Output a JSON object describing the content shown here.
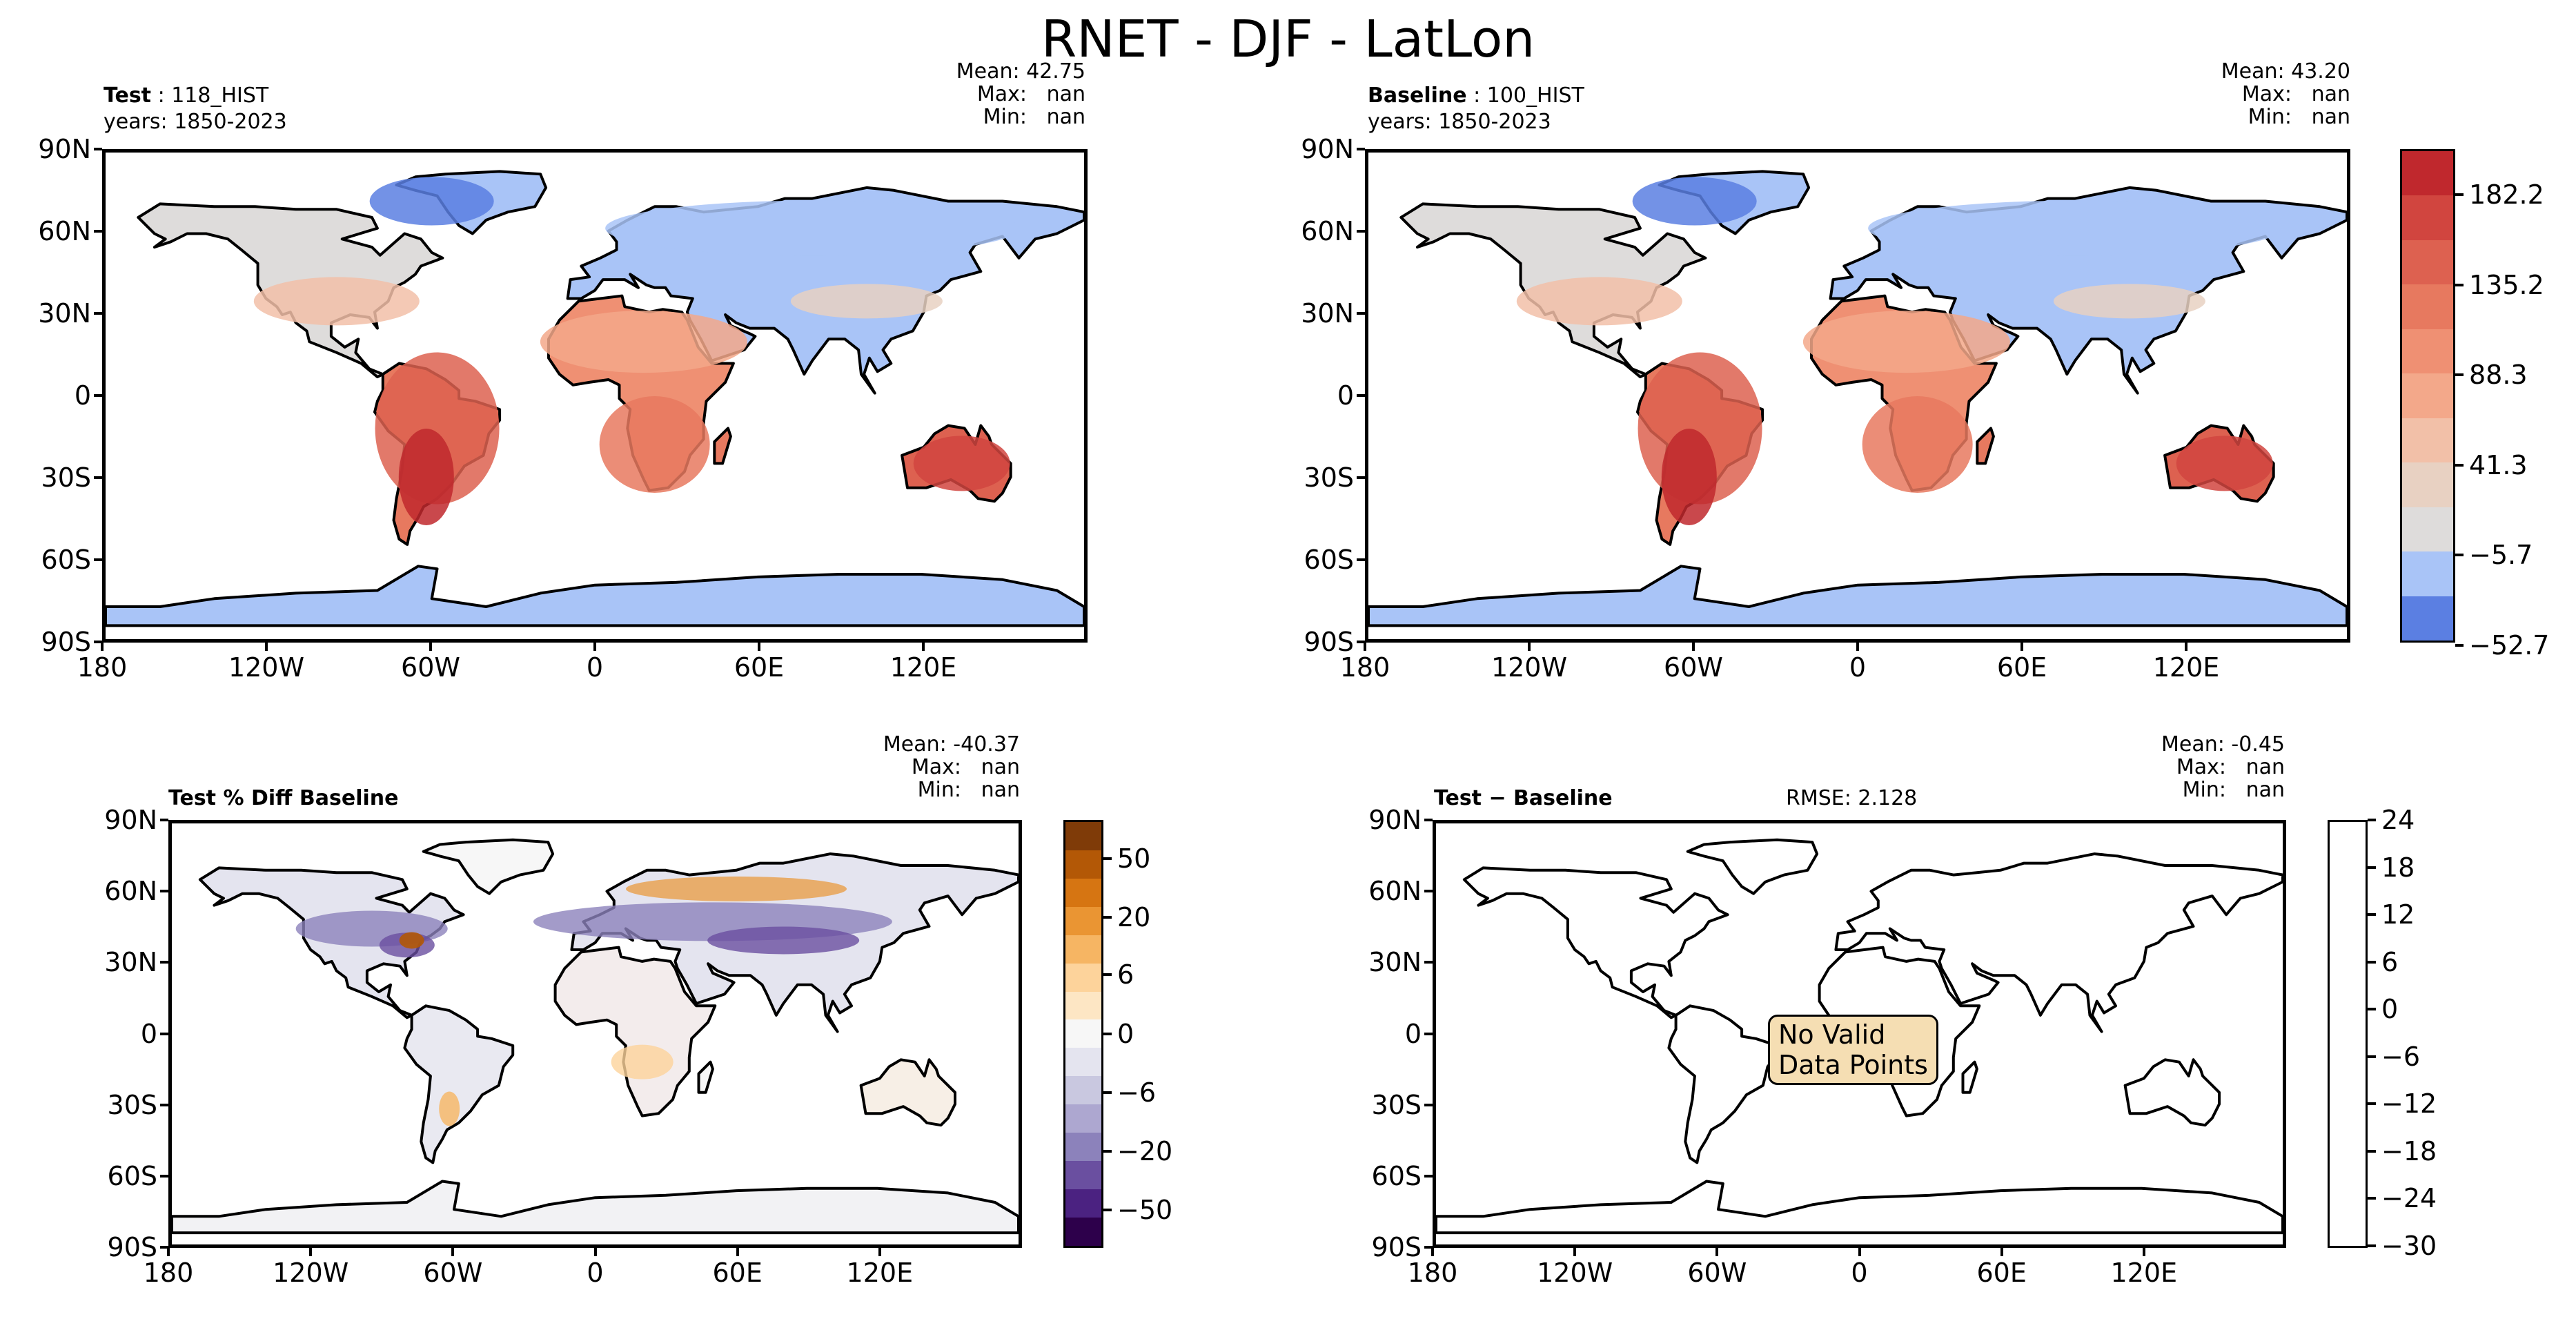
{
  "figure": {
    "title": "RNET - DJF - LatLon"
  },
  "panels": {
    "test": {
      "name_bold": "Test",
      "name_rest": " : 118_HIST",
      "years": "years: 1850-2023",
      "stats": "Mean: 42.75\nMax:   nan\nMin:   nan"
    },
    "baseline": {
      "name_bold": "Baseline",
      "name_rest": " : 100_HIST",
      "years": "years: 1850-2023",
      "stats": "Mean: 43.20\nMax:   nan\nMin:   nan"
    },
    "pctdiff": {
      "name_bold": "Test % Diff Baseline",
      "stats": "Mean: -40.37\nMax:   nan\nMin:   nan"
    },
    "diff": {
      "name_bold": "Test − Baseline",
      "rmse": "RMSE: 2.128",
      "stats": "Mean: -0.45\nMax:   nan\nMin:   nan",
      "nodata": "No Valid\nData Points"
    }
  },
  "axes": {
    "lat_ticks": [
      "90N",
      "60N",
      "30N",
      "0",
      "30S",
      "60S",
      "90S"
    ],
    "lon_ticks": [
      "180",
      "120W",
      "60W",
      "0",
      "60E",
      "120E"
    ]
  },
  "colorbars": {
    "main": {
      "ticks": [
        "182.2",
        "135.2",
        "88.3",
        "41.3",
        "−5.7",
        "−52.7"
      ],
      "colors": [
        "#c0282d",
        "#d1453f",
        "#dd6150",
        "#e7795f",
        "#ef9073",
        "#f3a88a",
        "#f2c0a8",
        "#e8d1c2",
        "#dedcdb",
        "#a9c4f7",
        "#5b7fe2"
      ]
    },
    "pct": {
      "ticks": [
        "50",
        "20",
        "6",
        "0",
        "−6",
        "−20",
        "−50"
      ],
      "colors": [
        "#7f3b08",
        "#b35806",
        "#d67512",
        "#ea9533",
        "#f6b563",
        "#fdd39b",
        "#fde6c4",
        "#f7f7f7",
        "#e4e4ef",
        "#c9c8e0",
        "#ada7d0",
        "#8c82bb",
        "#6a4fa0",
        "#4b2281",
        "#2d004b"
      ]
    },
    "diff": {
      "ticks": [
        "24",
        "18",
        "12",
        "6",
        "0",
        "−6",
        "−12",
        "−18",
        "−24",
        "−30"
      ]
    }
  },
  "chart_data": [
    {
      "type": "heatmap",
      "title": "Test : 118_HIST",
      "subtitle": "years: 1850-2023",
      "variable": "RNET",
      "season": "DJF",
      "stats": {
        "mean": 42.75,
        "max": "nan",
        "min": "nan"
      },
      "x_ticks": [
        "180",
        "120W",
        "60W",
        "0",
        "60E",
        "120E"
      ],
      "y_ticks": [
        "90N",
        "60N",
        "30N",
        "0",
        "30S",
        "60S",
        "90S"
      ],
      "xlim": [
        -180,
        180
      ],
      "ylim": [
        -90,
        90
      ],
      "colorbar_ticks": [
        182.2,
        135.2,
        88.3,
        41.3,
        -5.7,
        -52.7
      ],
      "regions": [
        {
          "name": "Arctic North America / Greenland",
          "approx_value": -40
        },
        {
          "name": "Northern Eurasia",
          "approx_value": -20
        },
        {
          "name": "Africa",
          "approx_value": 110
        },
        {
          "name": "South America",
          "approx_value": 150
        },
        {
          "name": "Australia",
          "approx_value": 140
        },
        {
          "name": "Antarctica",
          "approx_value": -10
        }
      ]
    },
    {
      "type": "heatmap",
      "title": "Baseline : 100_HIST",
      "subtitle": "years: 1850-2023",
      "stats": {
        "mean": 43.2,
        "max": "nan",
        "min": "nan"
      },
      "x_ticks": [
        "180",
        "120W",
        "60W",
        "0",
        "60E",
        "120E"
      ],
      "y_ticks": [
        "90N",
        "60N",
        "30N",
        "0",
        "30S",
        "60S",
        "90S"
      ],
      "xlim": [
        -180,
        180
      ],
      "ylim": [
        -90,
        90
      ]
    },
    {
      "type": "heatmap",
      "title": "Test % Diff Baseline",
      "stats": {
        "mean": -40.37,
        "max": "nan",
        "min": "nan"
      },
      "x_ticks": [
        "180",
        "120W",
        "60W",
        "0",
        "60E",
        "120E"
      ],
      "y_ticks": [
        "90N",
        "60N",
        "30N",
        "0",
        "30S",
        "60S",
        "90S"
      ],
      "xlim": [
        -180,
        180
      ],
      "ylim": [
        -90,
        90
      ],
      "colorbar_ticks": [
        50,
        20,
        6,
        0,
        -6,
        -20,
        -50
      ]
    },
    {
      "type": "heatmap",
      "title": "Test − Baseline",
      "rmse": 2.128,
      "stats": {
        "mean": -0.45,
        "max": "nan",
        "min": "nan"
      },
      "annotation": "No Valid Data Points",
      "x_ticks": [
        "180",
        "120W",
        "60W",
        "0",
        "60E",
        "120E"
      ],
      "y_ticks": [
        "90N",
        "60N",
        "30N",
        "0",
        "30S",
        "60S",
        "90S"
      ],
      "xlim": [
        -180,
        180
      ],
      "ylim": [
        -90,
        90
      ],
      "colorbar_ticks": [
        24,
        18,
        12,
        6,
        0,
        -6,
        -12,
        -18,
        -24,
        -30
      ]
    }
  ]
}
